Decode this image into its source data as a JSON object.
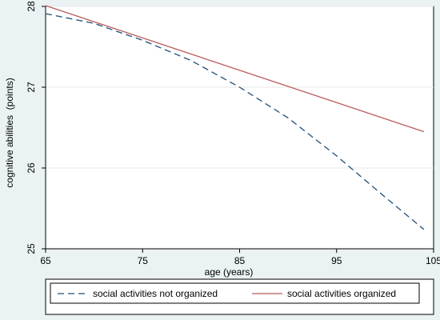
{
  "chart_data": {
    "type": "line",
    "title": "",
    "xlabel": "age (years)",
    "ylabel": "cognitive abilities  (points)",
    "xlim": [
      65,
      105
    ],
    "ylim": [
      25,
      28
    ],
    "xticks": [
      65,
      75,
      85,
      95,
      105
    ],
    "yticks": [
      25,
      26,
      27,
      28
    ],
    "grid": "horizontal",
    "legend_position": "bottom",
    "series": [
      {
        "name": "social activities not organized",
        "color": "#1f4e79",
        "style": "dashed",
        "x": [
          65,
          70,
          75,
          80,
          85,
          90,
          95,
          100,
          104
        ],
        "y": [
          27.91,
          27.79,
          27.58,
          27.33,
          27.0,
          26.62,
          26.15,
          25.64,
          25.24
        ]
      },
      {
        "name": "social activities organized",
        "color": "#b85c5c",
        "style": "solid",
        "x": [
          65,
          104
        ],
        "y": [
          28.01,
          26.45
        ]
      }
    ]
  }
}
